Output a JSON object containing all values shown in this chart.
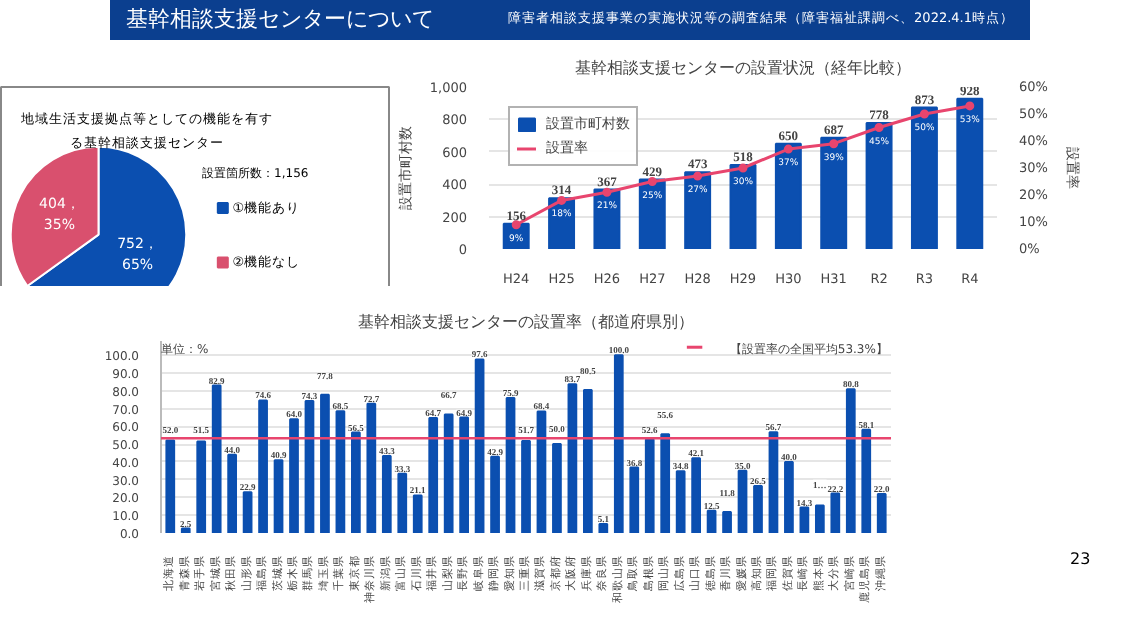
{
  "chart_data": [
    {
      "type": "pie",
      "title": "地域生活支援拠点等としての機能を有する基幹相談支援センター",
      "categories": [
        "①機能あり",
        "②機能なし"
      ],
      "values": [
        752,
        404
      ],
      "colors": [
        "#0b4fb0",
        "#d9506e"
      ],
      "value_labels": [
        "752，\n65%",
        "404，\n35%"
      ],
      "legend": "right",
      "annotations": [
        "基幹相談支援センターについて",
        "障害者相談支援事業の実施状況等の調査結果（障害福祉課調べ、2022.4.1時点）",
        "設置箇所数：1,156"
      ]
    },
    {
      "type": "bar",
      "title": "基幹相談支援センターの設置状況（経年比較）",
      "categories": [
        "H24",
        "H25",
        "H26",
        "H27",
        "H28",
        "H29",
        "H30",
        "H31",
        "R2",
        "R3",
        "R4"
      ],
      "series": [
        {
          "name": "設置市町村数",
          "type": "bar",
          "color": "#0b4fb0",
          "values": [
            156,
            314,
            367,
            429,
            473,
            518,
            650,
            687,
            778,
            873,
            928
          ]
        },
        {
          "name": "設置率",
          "type": "line",
          "axis": "y2",
          "color": "#e8456e",
          "values": [
            9,
            18,
            21,
            25,
            27,
            30,
            37,
            39,
            45,
            50,
            53
          ],
          "value_labels": [
            "9%",
            "18%",
            "21%",
            "25%",
            "27%",
            "30%",
            "37%",
            "39%",
            "45%",
            "50%",
            "53%"
          ]
        }
      ],
      "data_labels": true,
      "ylabel": "設置市町村数",
      "y2label": "設置率",
      "ylim": [
        0,
        1000
      ],
      "yticks": [
        0,
        200,
        400,
        600,
        800,
        {
          "value": 1000,
          "label": "1,000"
        }
      ],
      "y2lim": [
        0,
        60
      ],
      "y2ticks": [
        {
          "value": 0,
          "label": "0%"
        },
        {
          "value": 10,
          "label": "10%"
        },
        {
          "value": 20,
          "label": "20%"
        },
        {
          "value": 30,
          "label": "30%"
        },
        {
          "value": 40,
          "label": "40%"
        },
        {
          "value": 50,
          "label": "50%"
        },
        {
          "value": 60,
          "label": "60%"
        }
      ],
      "grid": "y",
      "legend": "top left",
      "marker": "circle"
    },
    {
      "type": "bar",
      "title": "基幹相談支援センターの設置率（都道府県別）",
      "categories": [
        "北海道",
        "青森県",
        "岩手県",
        "宮城県",
        "秋田県",
        "山形県",
        "福島県",
        "茨城県",
        "栃木県",
        "群馬県",
        "埼玉県",
        "千葉県",
        "東京都",
        "神奈川県",
        "新潟県",
        "富山県",
        "石川県",
        "福井県",
        "山梨県",
        "長野県",
        "岐阜県",
        "静岡県",
        "愛知県",
        "三重県",
        "滋賀県",
        "京都府",
        "大阪府",
        "兵庫県",
        "奈良県",
        "和歌山県",
        "鳥取県",
        "島根県",
        "岡山県",
        "広島県",
        "山口県",
        "徳島県",
        "香川県",
        "愛媛県",
        "高知県",
        "福岡県",
        "佐賀県",
        "長崎県",
        "熊本県",
        "大分県",
        "宮崎県",
        "鹿児島県",
        "沖縄県"
      ],
      "values": [
        52.0,
        2.5,
        51.5,
        82.9,
        44.0,
        22.9,
        74.6,
        40.9,
        64.0,
        74.3,
        77.8,
        68.5,
        56.5,
        72.7,
        43.3,
        33.3,
        21.1,
        64.7,
        66.7,
        64.9,
        97.6,
        42.9,
        75.9,
        51.7,
        68.4,
        50.0,
        83.7,
        80.5,
        5.1,
        100.0,
        36.8,
        52.6,
        55.6,
        34.8,
        42.1,
        12.5,
        11.8,
        35.0,
        26.5,
        56.7,
        40.0,
        14.3,
        15.4,
        22.2,
        80.8,
        58.1,
        22.0
      ],
      "value_labels": [
        "52.0",
        "2.5",
        "51.5",
        "82.9",
        "44.0",
        "22.9",
        "74.6",
        "40.9",
        "64.0",
        "74.3",
        "77.8",
        "68.5",
        "56.5",
        "72.7",
        "43.3",
        "33.3",
        "21.1",
        "64.7",
        "66.7",
        "64.9",
        "97.6",
        "42.9",
        "75.9",
        "51.7",
        "68.4",
        "50.0",
        "83.7",
        "80.5",
        "5.1",
        "100.0",
        "36.8",
        "52.6",
        "55.6",
        "34.8",
        "42.1",
        "12.5",
        "11.8",
        "35.0",
        "26.5",
        "56.7",
        "40.0",
        "14.3",
        "1…",
        "22.2",
        "80.8",
        "58.1",
        "22.0"
      ],
      "color": "#0b4fb0",
      "ylim": [
        0,
        108
      ],
      "yticks": [
        {
          "value": 0,
          "label": "0.0"
        },
        {
          "value": 10,
          "label": "10.0"
        },
        {
          "value": 20,
          "label": "20.0"
        },
        {
          "value": 30,
          "label": "30.0"
        },
        {
          "value": 40,
          "label": "40.0"
        },
        {
          "value": 50,
          "label": "50.0"
        },
        {
          "value": 60,
          "label": "60.0"
        },
        {
          "value": 70,
          "label": "70.0"
        },
        {
          "value": 80,
          "label": "80.0"
        },
        {
          "value": 90,
          "label": "90.0"
        },
        {
          "value": 100,
          "label": "100.0"
        }
      ],
      "grid": "y",
      "ref_lines": [
        {
          "axis": "y",
          "value": 53.3,
          "label": "【設置率の全国平均53.3%】",
          "color": "#e8456e"
        }
      ],
      "annotations": [
        "単位：%",
        "23"
      ]
    }
  ]
}
